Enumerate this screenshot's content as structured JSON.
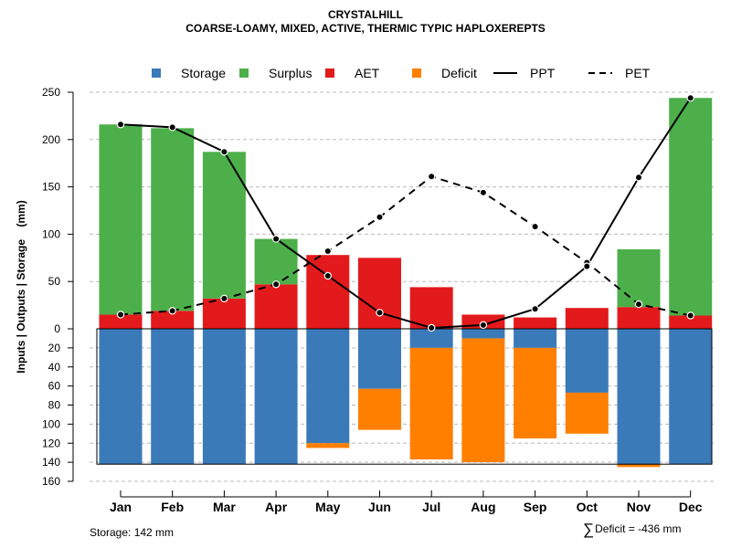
{
  "title": "CRYSTALHILL",
  "subtitle": "COARSE-LOAMY, MIXED, ACTIVE, THERMIC TYPIC HAPLOXEREPTS",
  "footer": {
    "storage": "Storage: 142 mm",
    "deficit_symbol": "∑",
    "deficit": "Deficit = -436 mm"
  },
  "colors": {
    "storage": "#3a7ab9",
    "surplus": "#4daf4a",
    "aet": "#e31a1c",
    "deficit": "#ff7f00",
    "grid": "#bbbbbb"
  },
  "chart_data": {
    "type": "bar",
    "title": "CRYSTALHILL",
    "subtitle": "COARSE-LOAMY, MIXED, ACTIVE, THERMIC TYPIC HAPLOXEREPTS",
    "ylabel": "Inputs | Outputs | Storage    (mm)",
    "categories": [
      "Jan",
      "Feb",
      "Mar",
      "Apr",
      "May",
      "Jun",
      "Jul",
      "Aug",
      "Sep",
      "Oct",
      "Nov",
      "Dec"
    ],
    "upper_ylim": [
      0,
      250
    ],
    "upper_ticks": [
      0,
      50,
      100,
      150,
      200,
      250
    ],
    "lower_ylim": [
      0,
      160
    ],
    "lower_ticks": [
      20,
      40,
      60,
      80,
      100,
      120,
      140,
      160
    ],
    "legend": [
      {
        "label": "Storage",
        "kind": "square",
        "color": "#3a7ab9"
      },
      {
        "label": "Surplus",
        "kind": "square",
        "color": "#4daf4a"
      },
      {
        "label": "AET",
        "kind": "square",
        "color": "#e31a1c"
      },
      {
        "label": "Deficit",
        "kind": "square",
        "color": "#ff7f00"
      },
      {
        "label": "PPT",
        "kind": "solid-line",
        "color": "#000000"
      },
      {
        "label": "PET",
        "kind": "dashed-line",
        "color": "#000000"
      }
    ],
    "aet": [
      15,
      19,
      32,
      47,
      78,
      75,
      44,
      15,
      12,
      22,
      23,
      14
    ],
    "surplus": [
      201,
      193,
      155,
      48,
      0,
      0,
      0,
      0,
      0,
      0,
      61,
      230
    ],
    "storage": [
      142,
      142,
      142,
      142,
      120,
      63,
      20,
      10,
      20,
      67,
      142,
      142
    ],
    "deficit": [
      0,
      0,
      0,
      0,
      5,
      43,
      117,
      130,
      95,
      43,
      3,
      0
    ],
    "ppt": [
      216,
      213,
      187,
      95,
      56,
      17,
      1,
      4,
      21,
      66,
      160,
      244
    ],
    "pet": [
      15,
      19,
      32,
      47,
      82,
      118,
      161,
      144,
      108,
      70,
      26,
      14
    ],
    "storage_capacity": 142
  }
}
